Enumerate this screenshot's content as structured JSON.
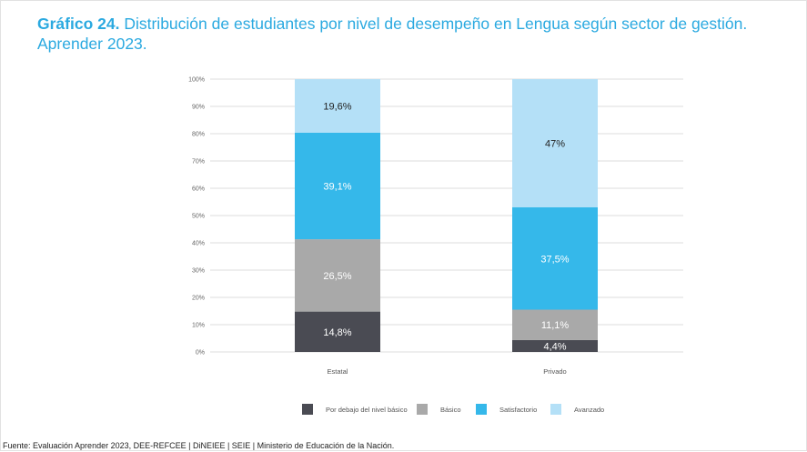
{
  "title": {
    "label": "Gráfico 24.",
    "text": "Distribución de estudiantes por nivel de desempeño en Lengua según sector de gestión.",
    "line2": "Aprender 2023."
  },
  "source": "Fuente: Evaluación Aprender 2023, DEE-REFCEE | DiNEIEE | SEIE | Ministerio de Educación de la Nación.",
  "chart_data": {
    "type": "bar",
    "stacked": true,
    "categories": [
      "Estatal",
      "Privado"
    ],
    "series": [
      {
        "name": "Por debajo del nivel básico",
        "color": "#4a4b53",
        "labelColor": "#ffffff",
        "values": [
          14.8,
          4.4
        ],
        "labels": [
          "14,8%",
          "4,4%"
        ]
      },
      {
        "name": "Básico",
        "color": "#a9a9a9",
        "labelColor": "#ffffff",
        "values": [
          26.5,
          11.1
        ],
        "labels": [
          "26,5%",
          "11,1%"
        ]
      },
      {
        "name": "Satisfactorio",
        "color": "#35b8ea",
        "labelColor": "#ffffff",
        "values": [
          39.1,
          37.5
        ],
        "labels": [
          "39,1%",
          "37,5%"
        ]
      },
      {
        "name": "Avanzado",
        "color": "#b4e0f7",
        "labelColor": "#222222",
        "values": [
          19.6,
          47
        ],
        "labels": [
          "19,6%",
          "47%"
        ]
      }
    ],
    "yticks": [
      "0%",
      "10%",
      "20%",
      "30%",
      "40%",
      "50%",
      "60%",
      "70%",
      "80%",
      "90%",
      "100%"
    ],
    "ylim": [
      0,
      100
    ],
    "grid": true,
    "legend": "bottom",
    "xlabel": "",
    "ylabel": ""
  }
}
